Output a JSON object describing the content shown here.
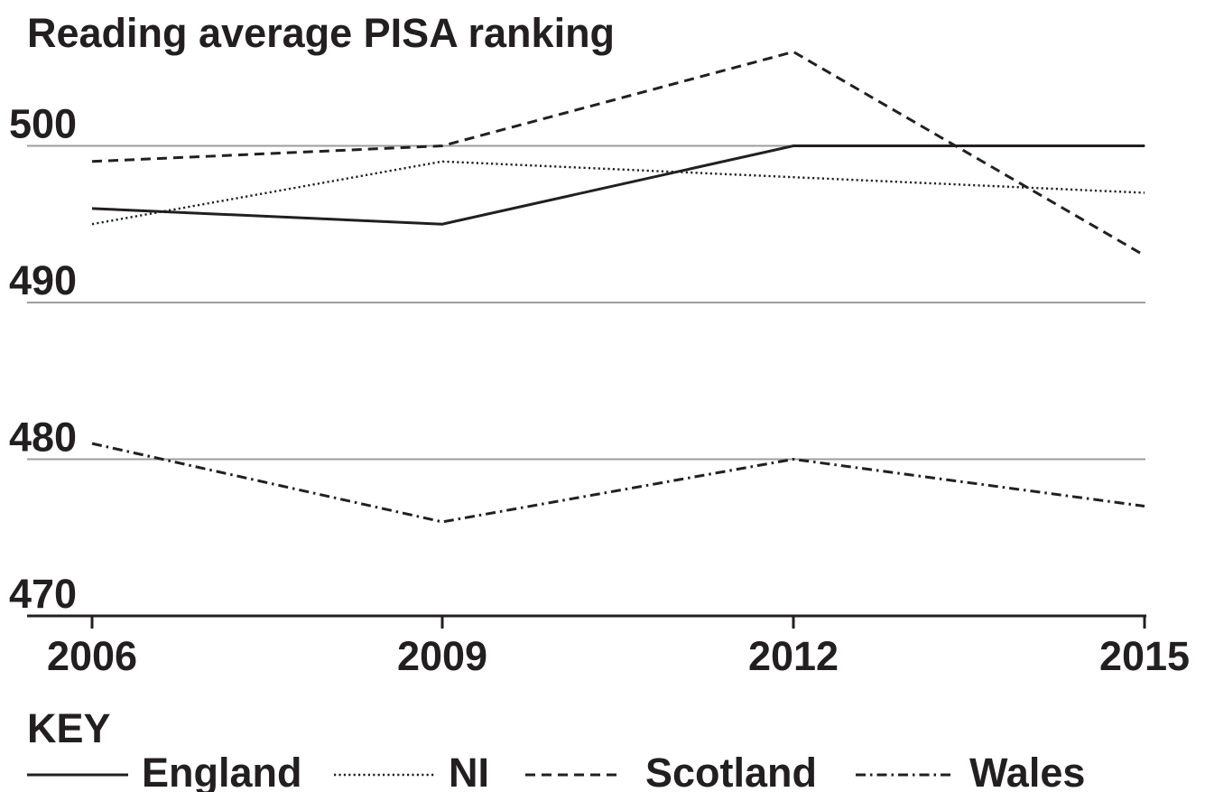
{
  "chart_data": {
    "type": "line",
    "title": "Reading average PISA ranking",
    "xlabel": "",
    "ylabel": "",
    "x": [
      "2006",
      "2009",
      "2012",
      "2015"
    ],
    "ylim": [
      470,
      503
    ],
    "yticks": [
      "500",
      "490",
      "480",
      "470"
    ],
    "ytick_values": [
      500,
      490,
      480,
      470
    ],
    "grid": true,
    "legend_title": "KEY",
    "legend_position": "bottom",
    "series": [
      {
        "name": "England",
        "dash": "solid",
        "color": "#231f20",
        "values": [
          496,
          495,
          500,
          500
        ]
      },
      {
        "name": "NI",
        "dash": "dotted",
        "color": "#231f20",
        "values": [
          495,
          499,
          498,
          497
        ]
      },
      {
        "name": "Scotland",
        "dash": "dashed",
        "color": "#231f20",
        "values": [
          499,
          500,
          506,
          493
        ]
      },
      {
        "name": "Wales",
        "dash": "dashdot",
        "color": "#231f20",
        "values": [
          481,
          476,
          480,
          477
        ]
      }
    ]
  }
}
